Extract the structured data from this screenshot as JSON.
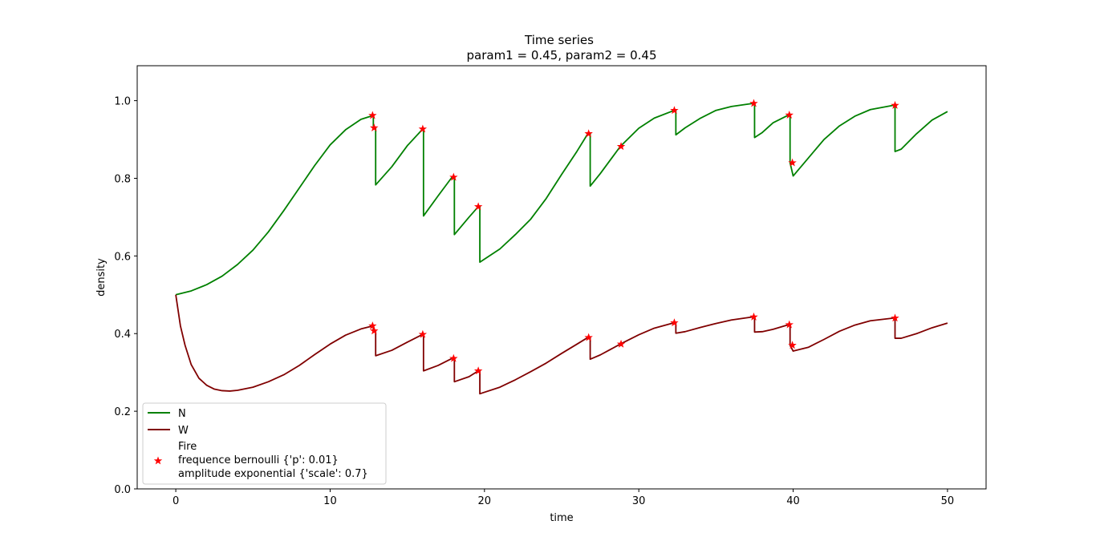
{
  "chart_data": {
    "type": "line",
    "title": "Time series",
    "subtitle": "param1 = 0.45, param2 = 0.45",
    "xlabel": "time",
    "ylabel": "density",
    "xlim": [
      -2.5,
      52.5
    ],
    "ylim": [
      0.0,
      1.09
    ],
    "xticks": [
      0,
      10,
      20,
      30,
      40,
      50
    ],
    "yticks": [
      0.0,
      0.2,
      0.4,
      0.6,
      0.8,
      1.0
    ],
    "xtick_labels": [
      "0",
      "10",
      "20",
      "30",
      "40",
      "50"
    ],
    "ytick_labels": [
      "0.0",
      "0.2",
      "0.4",
      "0.6",
      "0.8",
      "1.0"
    ],
    "grid": false,
    "legend_position": "lower-left",
    "series": [
      {
        "name": "N",
        "color": "#008000",
        "points": [
          [
            0,
            0.5
          ],
          [
            1,
            0.51
          ],
          [
            2,
            0.526
          ],
          [
            3,
            0.548
          ],
          [
            4,
            0.578
          ],
          [
            5,
            0.615
          ],
          [
            6,
            0.662
          ],
          [
            7,
            0.717
          ],
          [
            8,
            0.775
          ],
          [
            9,
            0.833
          ],
          [
            10,
            0.886
          ],
          [
            11,
            0.925
          ],
          [
            12,
            0.952
          ],
          [
            12.8,
            0.962
          ],
          [
            12.8,
            0.935
          ],
          [
            12.95,
            0.93
          ],
          [
            12.95,
            0.783
          ],
          [
            14,
            0.83
          ],
          [
            15,
            0.884
          ],
          [
            16,
            0.927
          ],
          [
            16,
            0.927
          ],
          [
            16.05,
            0.927
          ],
          [
            16.05,
            0.703
          ],
          [
            17,
            0.755
          ],
          [
            17.9,
            0.803
          ],
          [
            17.9,
            0.803
          ],
          [
            18.05,
            0.803
          ],
          [
            18.05,
            0.655
          ],
          [
            19,
            0.7
          ],
          [
            19.6,
            0.727
          ],
          [
            19.6,
            0.727
          ],
          [
            19.7,
            0.727
          ],
          [
            19.7,
            0.584
          ],
          [
            21,
            0.618
          ],
          [
            22,
            0.655
          ],
          [
            23,
            0.695
          ],
          [
            24,
            0.748
          ],
          [
            25,
            0.81
          ],
          [
            26,
            0.87
          ],
          [
            26.7,
            0.915
          ],
          [
            26.85,
            0.915
          ],
          [
            26.85,
            0.78
          ],
          [
            27.5,
            0.812
          ],
          [
            28.8,
            0.882
          ],
          [
            28.8,
            0.882
          ],
          [
            30,
            0.929
          ],
          [
            31,
            0.955
          ],
          [
            32.3,
            0.975
          ],
          [
            32.4,
            0.975
          ],
          [
            32.4,
            0.912
          ],
          [
            33,
            0.93
          ],
          [
            34,
            0.955
          ],
          [
            35,
            0.975
          ],
          [
            36,
            0.985
          ],
          [
            37.4,
            0.993
          ],
          [
            37.5,
            0.993
          ],
          [
            37.5,
            0.905
          ],
          [
            38,
            0.918
          ],
          [
            38.7,
            0.943
          ],
          [
            39.7,
            0.963
          ],
          [
            39.7,
            0.963
          ],
          [
            39.8,
            0.963
          ],
          [
            39.8,
            0.84
          ],
          [
            40,
            0.806
          ],
          [
            41,
            0.853
          ],
          [
            42,
            0.9
          ],
          [
            43,
            0.935
          ],
          [
            44,
            0.96
          ],
          [
            45,
            0.977
          ],
          [
            46.5,
            0.988
          ],
          [
            46.6,
            0.988
          ],
          [
            46.6,
            0.869
          ],
          [
            47,
            0.875
          ],
          [
            48,
            0.915
          ],
          [
            49,
            0.95
          ],
          [
            50,
            0.972
          ]
        ]
      },
      {
        "name": "W",
        "color": "#800000",
        "points": [
          [
            0,
            0.5
          ],
          [
            0.3,
            0.42
          ],
          [
            0.6,
            0.37
          ],
          [
            1,
            0.32
          ],
          [
            1.5,
            0.285
          ],
          [
            2,
            0.267
          ],
          [
            2.5,
            0.257
          ],
          [
            3,
            0.253
          ],
          [
            3.5,
            0.252
          ],
          [
            4,
            0.254
          ],
          [
            5,
            0.262
          ],
          [
            6,
            0.276
          ],
          [
            7,
            0.294
          ],
          [
            8,
            0.318
          ],
          [
            9,
            0.346
          ],
          [
            10,
            0.373
          ],
          [
            11,
            0.396
          ],
          [
            12,
            0.412
          ],
          [
            12.8,
            0.42
          ],
          [
            12.8,
            0.41
          ],
          [
            12.95,
            0.407
          ],
          [
            12.95,
            0.343
          ],
          [
            14,
            0.357
          ],
          [
            15,
            0.378
          ],
          [
            16,
            0.398
          ],
          [
            16.05,
            0.398
          ],
          [
            16.05,
            0.304
          ],
          [
            17,
            0.318
          ],
          [
            17.9,
            0.336
          ],
          [
            18.05,
            0.336
          ],
          [
            18.05,
            0.276
          ],
          [
            19,
            0.289
          ],
          [
            19.6,
            0.304
          ],
          [
            19.7,
            0.304
          ],
          [
            19.7,
            0.245
          ],
          [
            21,
            0.262
          ],
          [
            22,
            0.281
          ],
          [
            23,
            0.302
          ],
          [
            24,
            0.324
          ],
          [
            25,
            0.349
          ],
          [
            26,
            0.373
          ],
          [
            26.7,
            0.39
          ],
          [
            26.85,
            0.39
          ],
          [
            26.85,
            0.334
          ],
          [
            27.5,
            0.345
          ],
          [
            28.8,
            0.373
          ],
          [
            30,
            0.397
          ],
          [
            31,
            0.414
          ],
          [
            32.3,
            0.428
          ],
          [
            32.4,
            0.428
          ],
          [
            32.4,
            0.401
          ],
          [
            33,
            0.405
          ],
          [
            34,
            0.416
          ],
          [
            35,
            0.426
          ],
          [
            36,
            0.435
          ],
          [
            37.4,
            0.443
          ],
          [
            37.5,
            0.443
          ],
          [
            37.5,
            0.404
          ],
          [
            38,
            0.405
          ],
          [
            38.7,
            0.411
          ],
          [
            39.7,
            0.423
          ],
          [
            39.8,
            0.423
          ],
          [
            39.8,
            0.37
          ],
          [
            40,
            0.355
          ],
          [
            41,
            0.365
          ],
          [
            42,
            0.385
          ],
          [
            43,
            0.406
          ],
          [
            44,
            0.422
          ],
          [
            45,
            0.433
          ],
          [
            46.5,
            0.44
          ],
          [
            46.6,
            0.44
          ],
          [
            46.6,
            0.388
          ],
          [
            47,
            0.388
          ],
          [
            48,
            0.4
          ],
          [
            49,
            0.415
          ],
          [
            50,
            0.427
          ]
        ]
      }
    ],
    "markers": {
      "name": "Fire",
      "legend_lines": [
        "Fire",
        "frequence bernoulli {'p': 0.01}",
        "amplitude exponential {'scale': 0.7}"
      ],
      "color": "#ff0000",
      "marker": "star",
      "points": [
        [
          12.75,
          0.962
        ],
        [
          12.85,
          0.93
        ],
        [
          16.0,
          0.927
        ],
        [
          18.0,
          0.803
        ],
        [
          19.6,
          0.727
        ],
        [
          26.75,
          0.915
        ],
        [
          28.85,
          0.882
        ],
        [
          32.3,
          0.975
        ],
        [
          37.45,
          0.993
        ],
        [
          39.75,
          0.963
        ],
        [
          39.95,
          0.84
        ],
        [
          46.6,
          0.988
        ],
        [
          12.75,
          0.42
        ],
        [
          12.85,
          0.407
        ],
        [
          16.0,
          0.398
        ],
        [
          18.0,
          0.336
        ],
        [
          19.6,
          0.304
        ],
        [
          26.75,
          0.39
        ],
        [
          28.85,
          0.373
        ],
        [
          32.3,
          0.428
        ],
        [
          37.45,
          0.443
        ],
        [
          39.75,
          0.423
        ],
        [
          39.95,
          0.37
        ],
        [
          46.6,
          0.44
        ]
      ]
    }
  }
}
